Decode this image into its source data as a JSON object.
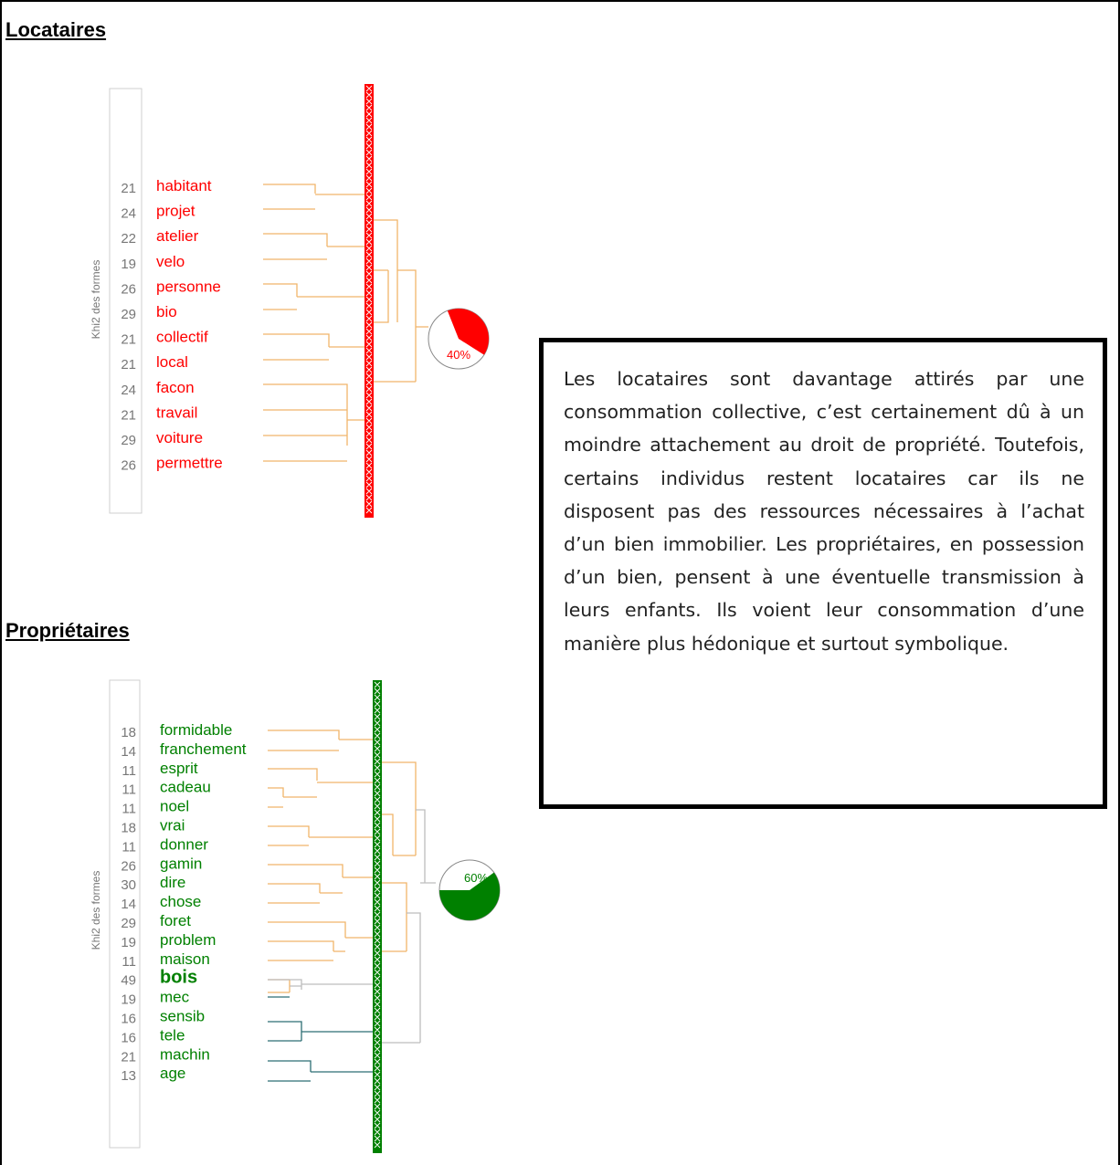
{
  "locataires": {
    "title": "Locataires",
    "axis_label": "Khi2 des formes",
    "pie_label": "40%",
    "pie_fraction": 0.4,
    "color": "#ff0000",
    "terms": [
      {
        "chi2": "21",
        "word": "habitant"
      },
      {
        "chi2": "24",
        "word": "projet"
      },
      {
        "chi2": "22",
        "word": "atelier"
      },
      {
        "chi2": "19",
        "word": "velo"
      },
      {
        "chi2": "26",
        "word": "personne"
      },
      {
        "chi2": "29",
        "word": "bio"
      },
      {
        "chi2": "21",
        "word": "collectif"
      },
      {
        "chi2": "21",
        "word": "local"
      },
      {
        "chi2": "24",
        "word": "facon"
      },
      {
        "chi2": "21",
        "word": "travail"
      },
      {
        "chi2": "29",
        "word": "voiture"
      },
      {
        "chi2": "26",
        "word": "permettre"
      }
    ]
  },
  "proprietaires": {
    "title": "Propriétaires",
    "axis_label": "Khi2 des formes",
    "pie_label": "60%",
    "pie_fraction": 0.6,
    "color": "#008000",
    "terms": [
      {
        "chi2": "18",
        "word": "formidable"
      },
      {
        "chi2": "14",
        "word": "franchement"
      },
      {
        "chi2": "11",
        "word": "esprit"
      },
      {
        "chi2": "11",
        "word": "cadeau"
      },
      {
        "chi2": "11",
        "word": "noel"
      },
      {
        "chi2": "18",
        "word": "vrai"
      },
      {
        "chi2": "11",
        "word": "donner"
      },
      {
        "chi2": "26",
        "word": "gamin"
      },
      {
        "chi2": "30",
        "word": "dire"
      },
      {
        "chi2": "14",
        "word": "chose"
      },
      {
        "chi2": "29",
        "word": "foret"
      },
      {
        "chi2": "19",
        "word": "problem"
      },
      {
        "chi2": "11",
        "word": "maison"
      },
      {
        "chi2": "49",
        "word": "bois"
      },
      {
        "chi2": "19",
        "word": "mec"
      },
      {
        "chi2": "16",
        "word": "sensib"
      },
      {
        "chi2": "16",
        "word": "tele"
      },
      {
        "chi2": "21",
        "word": "machin"
      },
      {
        "chi2": "13",
        "word": "age"
      }
    ]
  },
  "description": "Les locataires sont davantage attirés par une consommation collective, c’est certainement dû à un moindre attachement au droit de propriété. Toutefois,  certains individus restent locataires car ils ne disposent pas des ressources nécessaires à l’achat d’un bien immobilier. Les propriétaires, en possession d’un bien, pensent à une éventuelle transmission à leurs enfants. Ils voient leur consommation d’une manière plus hédonique et surtout symbolique.",
  "colors": {
    "branch_orange": "#f0b56a",
    "branch_teal": "#2c6e73",
    "branch_grey": "#bdbdbd",
    "chi2_grey": "#777777"
  }
}
